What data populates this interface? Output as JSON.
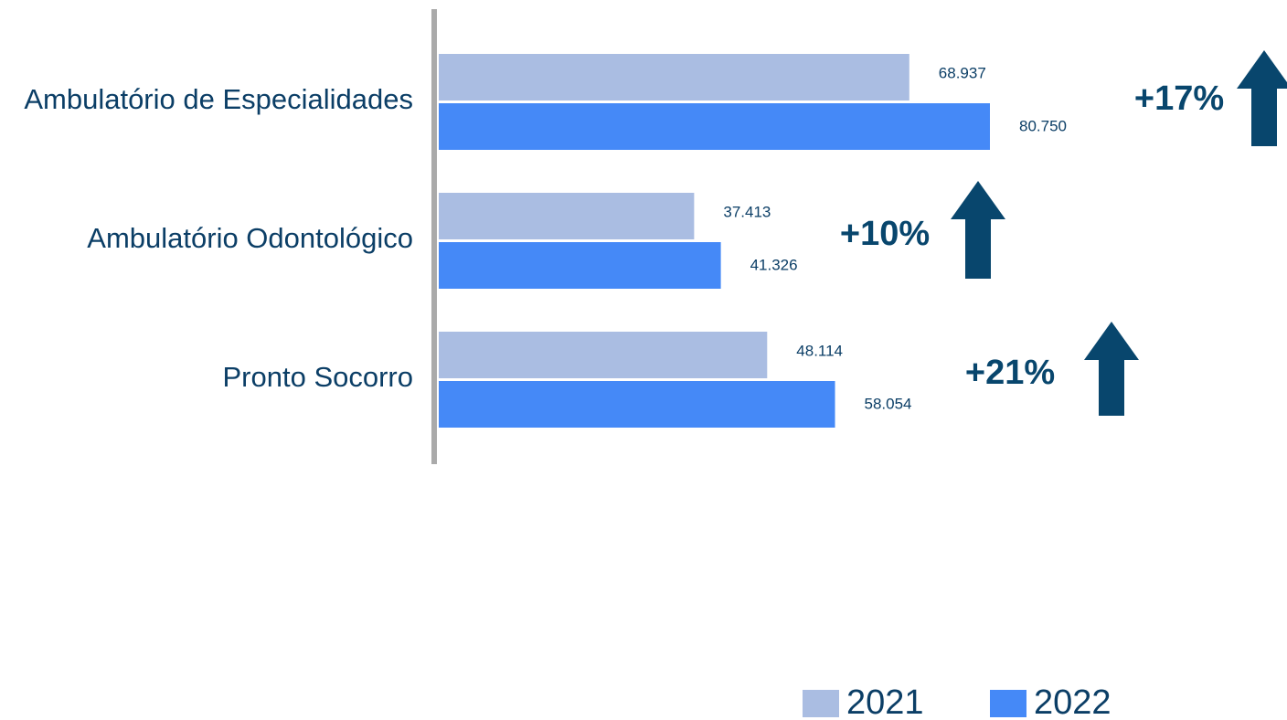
{
  "chart_data": {
    "type": "bar",
    "orientation": "horizontal",
    "categories": [
      "Ambulatório de Especialidades",
      "Ambulatório Odontológico",
      "Pronto Socorro"
    ],
    "series": [
      {
        "name": "2021",
        "color": "#aabde2",
        "values": [
          68937,
          37413,
          48114
        ],
        "value_labels": [
          "68.937",
          "37.413",
          "48.114"
        ]
      },
      {
        "name": "2022",
        "color": "#4589f7",
        "values": [
          80750,
          41326,
          58054
        ],
        "value_labels": [
          "80.750",
          "41.326",
          "58.054"
        ]
      }
    ],
    "annotations": [
      "+17%",
      "+10%",
      "+21%"
    ],
    "annotation_color": "#08466d",
    "legend": "bottom-right"
  }
}
